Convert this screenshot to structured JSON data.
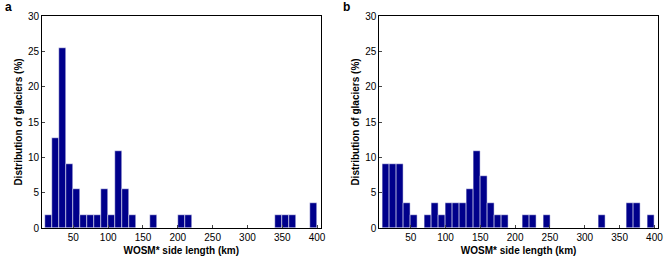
{
  "chart_data": [
    {
      "type": "histogram",
      "title": "a",
      "xlabel": "WOSM* side length (km)",
      "ylabel": "Distribution of glaciers (%)",
      "bins": [
        10,
        20,
        30,
        40,
        50,
        60,
        70,
        80,
        90,
        100,
        110,
        120,
        130,
        140,
        150,
        160,
        170,
        180,
        190,
        200,
        210,
        220,
        230,
        240,
        250,
        260,
        270,
        280,
        290,
        300,
        310,
        320,
        330,
        340,
        350,
        360,
        370,
        380,
        390,
        400
      ],
      "values": [
        1.8,
        12.7,
        25.5,
        9.1,
        5.5,
        1.8,
        1.8,
        1.8,
        5.5,
        1.8,
        10.9,
        5.5,
        1.8,
        0,
        0,
        1.8,
        0,
        0,
        0,
        1.8,
        1.8,
        0,
        0,
        0,
        0,
        0,
        0,
        0,
        0,
        0,
        0,
        0,
        0,
        1.8,
        1.8,
        1.8,
        0,
        0,
        3.6
      ],
      "color": "#00008b",
      "xlim": [
        5,
        405
      ],
      "xticks": [
        50,
        100,
        150,
        200,
        250,
        300,
        350,
        400
      ],
      "ylim": [
        0,
        30
      ],
      "yticks": [
        0,
        5,
        10,
        15,
        20,
        25,
        30
      ]
    },
    {
      "type": "histogram",
      "title": "b",
      "xlabel": "WOSM* side length (km)",
      "ylabel": "Distribution of glaciers (%)",
      "bins": [
        10,
        20,
        30,
        40,
        50,
        60,
        70,
        80,
        90,
        100,
        110,
        120,
        130,
        140,
        150,
        160,
        170,
        180,
        190,
        200,
        210,
        220,
        230,
        240,
        250,
        260,
        270,
        280,
        290,
        300,
        310,
        320,
        330,
        340,
        350,
        360,
        370,
        380,
        390,
        400
      ],
      "values": [
        9.1,
        9.1,
        9.1,
        3.6,
        1.8,
        0,
        1.8,
        3.6,
        1.8,
        3.6,
        3.6,
        3.6,
        5.5,
        10.9,
        7.3,
        3.6,
        1.8,
        1.8,
        0,
        0,
        1.8,
        1.8,
        0,
        1.8,
        0,
        0,
        0,
        0,
        0,
        0,
        0,
        1.8,
        0,
        0,
        0,
        3.6,
        3.6,
        0,
        1.8
      ],
      "color": "#00008b",
      "xlim": [
        5,
        405
      ],
      "xticks": [
        50,
        100,
        150,
        200,
        250,
        300,
        350,
        400
      ],
      "ylim": [
        0,
        30
      ],
      "yticks": [
        0,
        5,
        10,
        15,
        20,
        25,
        30
      ]
    }
  ]
}
